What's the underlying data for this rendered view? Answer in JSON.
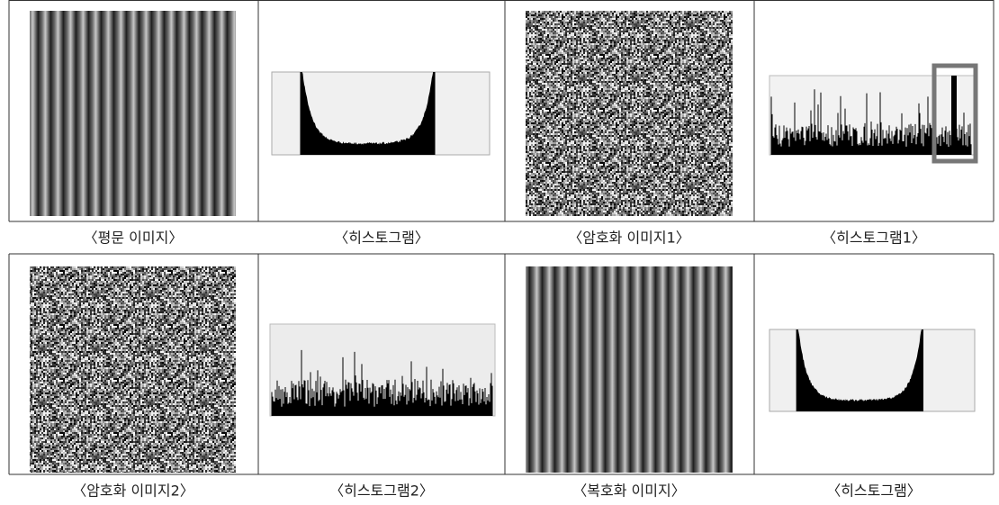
{
  "rows": [
    [
      "〈평문 이미지〉",
      "〈히스토그램〉",
      "〈암호화 이미지1〉",
      "〈히스토그램1〉"
    ],
    [
      "〈암호화 이미지2〉",
      "〈히스토그램2〉",
      "〈복호화 이미지〉",
      "〈히스토그램〉"
    ]
  ]
}
